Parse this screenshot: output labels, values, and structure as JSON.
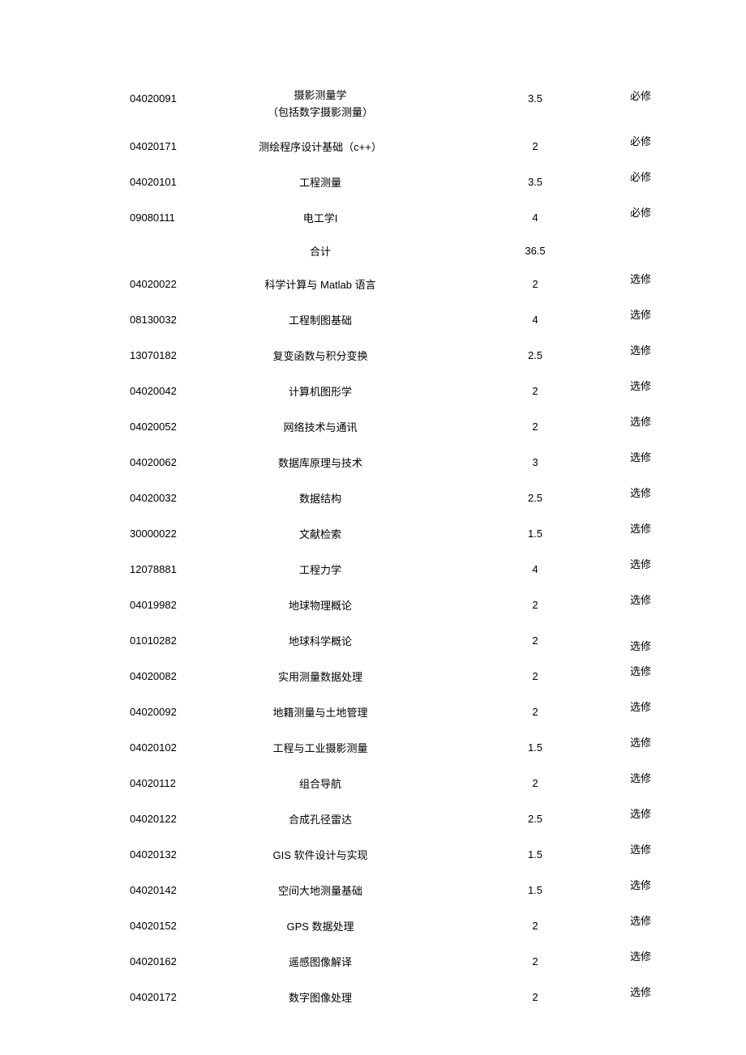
{
  "table": {
    "background_color": "#ffffff",
    "text_color": "#000000",
    "code_fontsize": 13,
    "name_fontsize": 13,
    "credit_fontsize": 13,
    "type_fontsize": 13,
    "columns": {
      "code_width": 200,
      "name_width": 390,
      "credit_width": 140,
      "type_width": 120
    },
    "rows": [
      {
        "code": "04020091",
        "name": "摄影测量学",
        "name2": "（包括数字摄影测量）",
        "credit": "3.5",
        "type": "必修",
        "multiline": true
      },
      {
        "code": "04020171",
        "name": "测绘程序设计基础（c++）",
        "credit": "2",
        "type": "必修"
      },
      {
        "code": "04020101",
        "name": "工程测量",
        "credit": "3.5",
        "type": "必修"
      },
      {
        "code": "09080111",
        "name": "电工学I",
        "credit": "4",
        "type": "必修"
      },
      {
        "code": "",
        "name": "合计",
        "credit": "36.5",
        "type": "",
        "is_total": true
      },
      {
        "code": "04020022",
        "name": "科学计算与 Matlab 语言",
        "credit": "2",
        "type": "选修"
      },
      {
        "code": "08130032",
        "name": "工程制图基础",
        "credit": "4",
        "type": "选修"
      },
      {
        "code": "13070182",
        "name": "复变函数与积分变换",
        "credit": "2.5",
        "type": "选修"
      },
      {
        "code": "04020042",
        "name": "计算机图形学",
        "credit": "2",
        "type": "选修"
      },
      {
        "code": "04020052",
        "name": "网络技术与通讯",
        "credit": "2",
        "type": "选修"
      },
      {
        "code": "04020062",
        "name": "数据库原理与技术",
        "credit": "3",
        "type": "选修"
      },
      {
        "code": "04020032",
        "name": "数据结构",
        "credit": "2.5",
        "type": "选修"
      },
      {
        "code": "30000022",
        "name": "文献检索",
        "credit": "1.5",
        "type": "选修"
      },
      {
        "code": "12078881",
        "name": "工程力学",
        "credit": "4",
        "type": "选修"
      },
      {
        "code": "04019982",
        "name": "地球物理概论",
        "credit": "2",
        "type": "选修"
      },
      {
        "code": "01010282",
        "name": "地球科学概论",
        "credit": "2",
        "type": "选修",
        "type_lower": true
      },
      {
        "code": "04020082",
        "name": "实用测量数据处理",
        "credit": "2",
        "type": "选修"
      },
      {
        "code": "04020092",
        "name": "地籍测量与土地管理",
        "credit": "2",
        "type": "选修"
      },
      {
        "code": "04020102",
        "name": "工程与工业摄影测量",
        "credit": "1.5",
        "type": "选修"
      },
      {
        "code": "04020112",
        "name": "组合导航",
        "credit": "2",
        "type": "选修"
      },
      {
        "code": "04020122",
        "name": "合成孔径雷达",
        "credit": "2.5",
        "type": "选修"
      },
      {
        "code": "04020132",
        "name": "GIS 软件设计与实现",
        "credit": "1.5",
        "type": "选修"
      },
      {
        "code": "04020142",
        "name": "空间大地测量基础",
        "credit": "1.5",
        "type": "选修"
      },
      {
        "code": "04020152",
        "name": "GPS 数据处理",
        "credit": "2",
        "type": "选修"
      },
      {
        "code": "04020162",
        "name": "遥感图像解译",
        "credit": "2",
        "type": "选修"
      },
      {
        "code": "04020172",
        "name": "数字图像处理",
        "credit": "2",
        "type": "选修"
      }
    ]
  }
}
